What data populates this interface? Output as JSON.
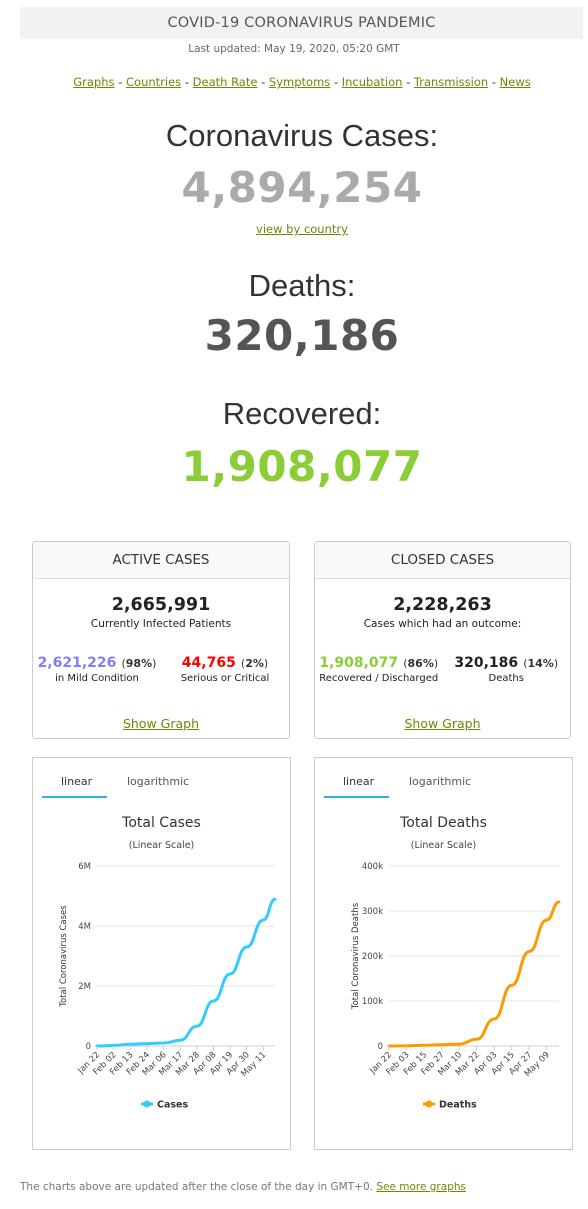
{
  "header": {
    "banner": "COVID-19 CORONAVIRUS PANDEMIC",
    "last_updated": "Last updated: May 19, 2020, 05:20 GMT"
  },
  "nav": [
    {
      "label": "Graphs"
    },
    {
      "label": "Countries"
    },
    {
      "label": "Death Rate"
    },
    {
      "label": "Symptoms"
    },
    {
      "label": "Incubation"
    },
    {
      "label": "Transmission"
    },
    {
      "label": "News"
    }
  ],
  "nav_separator": "-",
  "stats": {
    "cases_label": "Coronavirus Cases:",
    "cases_value": "4,894,254",
    "view_by_country": "view by country",
    "deaths_label": "Deaths:",
    "deaths_value": "320,186",
    "recovered_label": "Recovered:",
    "recovered_value": "1,908,077"
  },
  "active": {
    "title": "ACTIVE CASES",
    "total": "2,665,991",
    "total_label": "Currently Infected Patients",
    "mild_value": "2,621,226",
    "mild_pct": "98%",
    "mild_label": "in Mild Condition",
    "serious_value": "44,765",
    "serious_pct": "2%",
    "serious_label": "Serious or Critical",
    "show_graph": "Show Graph"
  },
  "closed": {
    "title": "CLOSED CASES",
    "total": "2,228,263",
    "total_label": "Cases which had an outcome:",
    "recovered_value": "1,908,077",
    "recovered_pct": "86%",
    "recovered_label": "Recovered / Discharged",
    "deaths_value": "320,186",
    "deaths_pct": "14%",
    "deaths_label": "Deaths",
    "show_graph": "Show Graph"
  },
  "tabs": {
    "linear": "linear",
    "logarithmic": "logarithmic"
  },
  "colors": {
    "accent_green": "#688a08",
    "recovered": "#8acd37",
    "mild": "#8080f0",
    "serious": "#ff0000",
    "cases_line": "#33ccff",
    "deaths_line": "#ff9900",
    "tab_underline": "#2eaee6"
  },
  "footer": {
    "text": "The charts above are updated after the close of the day in GMT+0.",
    "link": "See more graphs"
  },
  "chart_data": [
    {
      "type": "line",
      "title": "Total Cases",
      "subtitle": "(Linear Scale)",
      "ylabel": "Total Coronavirus Cases",
      "ylim": [
        0,
        6000000
      ],
      "yticks": [
        "0",
        "2M",
        "4M",
        "6M"
      ],
      "xtick_labels": [
        "Jan 22",
        "Feb 02",
        "Feb 13",
        "Feb 24",
        "Mar 06",
        "Mar 17",
        "Mar 28",
        "Apr 08",
        "Apr 19",
        "Apr 30",
        "May 11"
      ],
      "series": [
        {
          "name": "Cases",
          "color": "#33ccff",
          "x": [
            "Jan 22",
            "Feb 02",
            "Feb 13",
            "Feb 24",
            "Mar 06",
            "Mar 17",
            "Mar 28",
            "Apr 08",
            "Apr 19",
            "Apr 30",
            "May 11",
            "May 18"
          ],
          "values": [
            0,
            20000,
            60000,
            80000,
            100000,
            190000,
            660000,
            1500000,
            2400000,
            3300000,
            4200000,
            4890000
          ]
        }
      ]
    },
    {
      "type": "line",
      "title": "Total Deaths",
      "subtitle": "(Linear Scale)",
      "ylabel": "Total Coronavirus Deaths",
      "ylim": [
        0,
        400000
      ],
      "yticks": [
        "0",
        "100k",
        "200k",
        "300k",
        "400k"
      ],
      "xtick_labels": [
        "Jan 22",
        "Feb 03",
        "Feb 15",
        "Feb 27",
        "Mar 10",
        "Mar 22",
        "Apr 03",
        "Apr 15",
        "Apr 27",
        "May 09"
      ],
      "series": [
        {
          "name": "Deaths",
          "color": "#ff9900",
          "x": [
            "Jan 22",
            "Feb 03",
            "Feb 15",
            "Feb 27",
            "Mar 10",
            "Mar 22",
            "Apr 03",
            "Apr 15",
            "Apr 27",
            "May 09",
            "May 18"
          ],
          "values": [
            0,
            400,
            1700,
            2900,
            4300,
            15000,
            60000,
            135000,
            210000,
            280000,
            320000
          ]
        }
      ]
    }
  ]
}
